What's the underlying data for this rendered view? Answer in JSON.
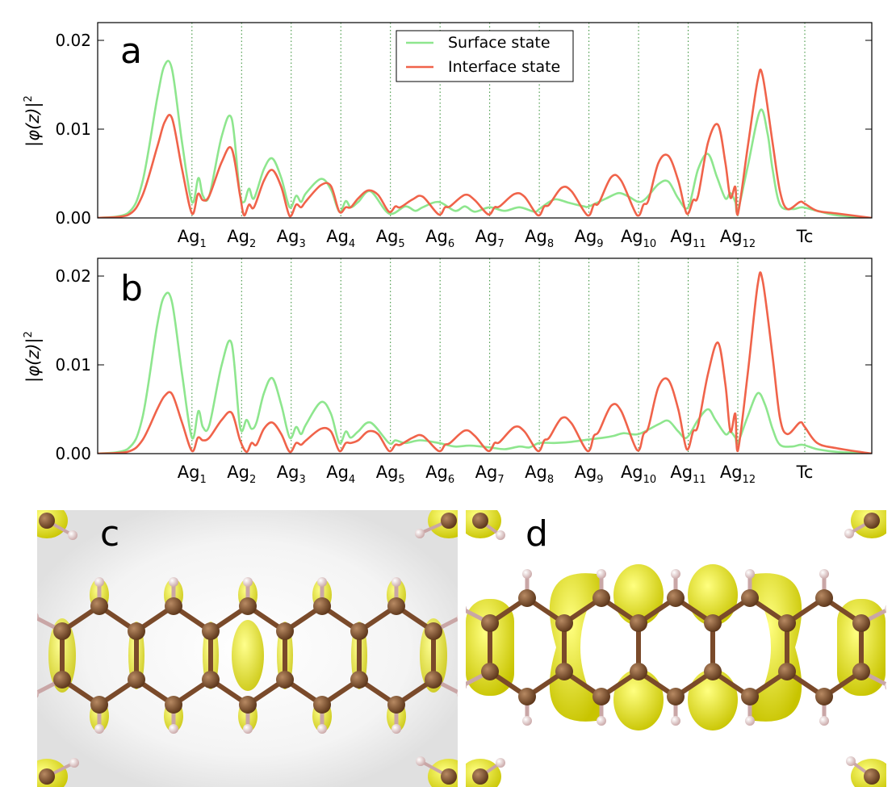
{
  "chart_data": [
    {
      "type": "line",
      "panel_label": "a",
      "ylabel": "|φ(z)|",
      "ylabel_sup": "2",
      "ylim": [
        0.0,
        0.022
      ],
      "yticks": [
        "0.00",
        "0.01",
        "0.02"
      ],
      "ytick_values": [
        0.0,
        0.01,
        0.02
      ],
      "xlim": [
        -1.9,
        13.7
      ],
      "legend_position": "top-center",
      "categories": [
        {
          "base": "Ag",
          "sub": "1",
          "x": 0
        },
        {
          "base": "Ag",
          "sub": "2",
          "x": 1
        },
        {
          "base": "Ag",
          "sub": "3",
          "x": 2
        },
        {
          "base": "Ag",
          "sub": "4",
          "x": 3
        },
        {
          "base": "Ag",
          "sub": "5",
          "x": 4
        },
        {
          "base": "Ag",
          "sub": "6",
          "x": 5
        },
        {
          "base": "Ag",
          "sub": "7",
          "x": 6
        },
        {
          "base": "Ag",
          "sub": "8",
          "x": 7
        },
        {
          "base": "Ag",
          "sub": "9",
          "x": 8
        },
        {
          "base": "Ag",
          "sub": "10",
          "x": 9
        },
        {
          "base": "Ag",
          "sub": "11",
          "x": 10
        },
        {
          "base": "Ag",
          "sub": "12",
          "x": 11
        },
        {
          "base": "Tc",
          "sub": "",
          "x": 12.35
        }
      ],
      "series": [
        {
          "name": "Surface state",
          "color": "#8ee68e",
          "x": [
            -1.9,
            -1.3,
            -1.0,
            -0.7,
            -0.55,
            -0.4,
            -0.2,
            0.0,
            0.13,
            0.22,
            0.35,
            0.6,
            0.8,
            0.96,
            1.05,
            1.15,
            1.25,
            1.45,
            1.62,
            1.8,
            1.97,
            2.1,
            2.2,
            2.3,
            2.6,
            2.8,
            2.97,
            3.1,
            3.2,
            3.35,
            3.6,
            3.97,
            4.3,
            4.5,
            4.65,
            4.97,
            5.3,
            5.5,
            5.7,
            6.0,
            6.3,
            6.6,
            6.9,
            7.0,
            7.2,
            7.35,
            7.6,
            7.9,
            8.0,
            8.35,
            8.6,
            8.8,
            9.0,
            9.15,
            9.4,
            9.6,
            9.8,
            10.0,
            10.2,
            10.4,
            10.58,
            10.75,
            10.85,
            10.95,
            11.0,
            11.2,
            11.45,
            11.6,
            11.7,
            11.85,
            12.1,
            12.3,
            12.6,
            13.0,
            13.7
          ],
          "values": [
            0.0,
            0.0005,
            0.004,
            0.0135,
            0.0172,
            0.0167,
            0.0085,
            0.0018,
            0.0045,
            0.0025,
            0.0025,
            0.0092,
            0.0112,
            0.003,
            0.0018,
            0.0033,
            0.0022,
            0.0055,
            0.0067,
            0.0045,
            0.0012,
            0.0025,
            0.0018,
            0.0028,
            0.0044,
            0.0032,
            0.0007,
            0.0019,
            0.0012,
            0.0018,
            0.003,
            0.0005,
            0.0013,
            0.0008,
            0.0012,
            0.0018,
            0.0008,
            0.0013,
            0.0007,
            0.0012,
            0.0008,
            0.0012,
            0.0007,
            0.001,
            0.0018,
            0.0021,
            0.0017,
            0.0013,
            0.0013,
            0.0022,
            0.0028,
            0.0024,
            0.0018,
            0.0022,
            0.0038,
            0.0041,
            0.0022,
            0.0012,
            0.0055,
            0.0072,
            0.0046,
            0.0022,
            0.0028,
            0.0018,
            0.0008,
            0.0058,
            0.0121,
            0.0095,
            0.0055,
            0.0015,
            0.001,
            0.0012,
            0.0008,
            0.0003,
            0.0
          ]
        },
        {
          "name": "Interface state",
          "color": "#f0634a",
          "x": [
            -1.9,
            -1.3,
            -1.0,
            -0.7,
            -0.55,
            -0.4,
            -0.2,
            0.0,
            0.12,
            0.22,
            0.35,
            0.6,
            0.8,
            0.97,
            1.05,
            1.15,
            1.25,
            1.45,
            1.62,
            1.8,
            1.97,
            2.1,
            2.2,
            2.3,
            2.6,
            2.8,
            2.97,
            3.1,
            3.2,
            3.35,
            3.55,
            3.75,
            3.97,
            4.1,
            4.2,
            4.45,
            4.65,
            4.97,
            5.1,
            5.2,
            5.5,
            5.7,
            5.97,
            6.1,
            6.2,
            6.5,
            6.7,
            6.97,
            7.1,
            7.2,
            7.45,
            7.65,
            7.97,
            8.1,
            8.2,
            8.45,
            8.65,
            8.97,
            9.1,
            9.2,
            9.4,
            9.6,
            9.8,
            9.97,
            10.1,
            10.2,
            10.4,
            10.6,
            10.75,
            10.85,
            10.95,
            11.0,
            11.2,
            11.4,
            11.5,
            11.7,
            11.85,
            12.0,
            12.25,
            12.35,
            12.6,
            13.0,
            13.7
          ],
          "values": [
            0.0,
            0.0003,
            0.0025,
            0.008,
            0.0108,
            0.0112,
            0.0055,
            0.0005,
            0.0027,
            0.002,
            0.0025,
            0.0063,
            0.0078,
            0.0025,
            0.0003,
            0.0015,
            0.0012,
            0.0042,
            0.0054,
            0.0035,
            0.0002,
            0.0015,
            0.0012,
            0.0019,
            0.0037,
            0.0036,
            0.0007,
            0.0012,
            0.0012,
            0.0022,
            0.0031,
            0.0026,
            0.0007,
            0.0013,
            0.0012,
            0.0021,
            0.0024,
            0.0004,
            0.0012,
            0.0013,
            0.0026,
            0.002,
            0.0004,
            0.0012,
            0.0013,
            0.0027,
            0.0024,
            0.0003,
            0.0013,
            0.0015,
            0.0034,
            0.003,
            0.0003,
            0.0015,
            0.0017,
            0.0046,
            0.0042,
            0.0003,
            0.0015,
            0.002,
            0.0062,
            0.007,
            0.0042,
            0.0005,
            0.002,
            0.0025,
            0.0085,
            0.0105,
            0.0062,
            0.0023,
            0.0035,
            0.0004,
            0.008,
            0.0155,
            0.016,
            0.0085,
            0.003,
            0.001,
            0.0018,
            0.0016,
            0.0008,
            0.0005,
            0.0
          ]
        }
      ]
    },
    {
      "type": "line",
      "panel_label": "b",
      "ylabel": "|φ(z)|",
      "ylabel_sup": "2",
      "ylim": [
        0.0,
        0.022
      ],
      "yticks": [
        "0.00",
        "0.01",
        "0.02"
      ],
      "ytick_values": [
        0.0,
        0.01,
        0.02
      ],
      "xlim": [
        -1.9,
        13.7
      ],
      "categories": [
        {
          "base": "Ag",
          "sub": "1",
          "x": 0
        },
        {
          "base": "Ag",
          "sub": "2",
          "x": 1
        },
        {
          "base": "Ag",
          "sub": "3",
          "x": 2
        },
        {
          "base": "Ag",
          "sub": "4",
          "x": 3
        },
        {
          "base": "Ag",
          "sub": "5",
          "x": 4
        },
        {
          "base": "Ag",
          "sub": "6",
          "x": 5
        },
        {
          "base": "Ag",
          "sub": "7",
          "x": 6
        },
        {
          "base": "Ag",
          "sub": "8",
          "x": 7
        },
        {
          "base": "Ag",
          "sub": "9",
          "x": 8
        },
        {
          "base": "Ag",
          "sub": "10",
          "x": 9
        },
        {
          "base": "Ag",
          "sub": "11",
          "x": 10
        },
        {
          "base": "Ag",
          "sub": "12",
          "x": 11
        },
        {
          "base": "Tc",
          "sub": "",
          "x": 12.35
        }
      ],
      "series": [
        {
          "name": "Surface state",
          "color": "#8ee68e",
          "x": [
            -1.9,
            -1.3,
            -1.0,
            -0.7,
            -0.55,
            -0.4,
            -0.2,
            0.0,
            0.13,
            0.22,
            0.35,
            0.6,
            0.8,
            0.97,
            1.1,
            1.2,
            1.3,
            1.45,
            1.62,
            1.8,
            1.97,
            2.1,
            2.2,
            2.3,
            2.6,
            2.8,
            2.97,
            3.1,
            3.2,
            3.35,
            3.6,
            3.97,
            4.1,
            4.3,
            4.6,
            4.97,
            5.3,
            5.6,
            6.0,
            6.3,
            6.6,
            6.8,
            7.0,
            7.3,
            7.6,
            8.0,
            8.3,
            8.5,
            8.7,
            9.0,
            9.4,
            9.6,
            9.8,
            9.97,
            10.2,
            10.4,
            10.55,
            10.75,
            10.85,
            10.95,
            11.0,
            11.2,
            11.4,
            11.55,
            11.7,
            11.85,
            12.1,
            12.3,
            12.6,
            13.0,
            13.7
          ],
          "values": [
            0.0,
            0.0005,
            0.004,
            0.0145,
            0.0178,
            0.017,
            0.009,
            0.0018,
            0.0048,
            0.003,
            0.0032,
            0.01,
            0.0124,
            0.003,
            0.0038,
            0.0028,
            0.0035,
            0.0068,
            0.0085,
            0.0055,
            0.0018,
            0.003,
            0.0022,
            0.0033,
            0.0058,
            0.0045,
            0.0012,
            0.0025,
            0.0018,
            0.0025,
            0.0035,
            0.0012,
            0.0015,
            0.0012,
            0.0015,
            0.0012,
            0.0008,
            0.0009,
            0.0007,
            0.0005,
            0.0008,
            0.0007,
            0.0012,
            0.0012,
            0.0013,
            0.0016,
            0.0018,
            0.002,
            0.0023,
            0.0022,
            0.0033,
            0.0037,
            0.0025,
            0.0018,
            0.0038,
            0.005,
            0.0038,
            0.0022,
            0.0025,
            0.0018,
            0.0012,
            0.0042,
            0.0068,
            0.0055,
            0.0028,
            0.001,
            0.0008,
            0.001,
            0.0005,
            0.0002,
            0.0
          ]
        },
        {
          "name": "Interface state",
          "color": "#f0634a",
          "x": [
            -1.9,
            -1.3,
            -1.0,
            -0.7,
            -0.55,
            -0.4,
            -0.2,
            0.0,
            0.12,
            0.22,
            0.35,
            0.6,
            0.8,
            0.97,
            1.1,
            1.2,
            1.3,
            1.45,
            1.62,
            1.8,
            1.97,
            2.1,
            2.2,
            2.3,
            2.6,
            2.8,
            2.97,
            3.1,
            3.2,
            3.35,
            3.55,
            3.75,
            3.97,
            4.1,
            4.2,
            4.45,
            4.65,
            4.97,
            5.1,
            5.2,
            5.5,
            5.7,
            5.97,
            6.1,
            6.2,
            6.5,
            6.7,
            6.97,
            7.1,
            7.2,
            7.45,
            7.65,
            7.97,
            8.1,
            8.2,
            8.45,
            8.65,
            8.97,
            9.1,
            9.2,
            9.4,
            9.6,
            9.8,
            9.97,
            10.1,
            10.2,
            10.4,
            10.6,
            10.75,
            10.85,
            10.95,
            11.0,
            11.2,
            11.4,
            11.5,
            11.7,
            11.85,
            12.0,
            12.25,
            12.35,
            12.6,
            13.0,
            13.7
          ],
          "values": [
            0.0,
            0.0002,
            0.0015,
            0.005,
            0.0065,
            0.0067,
            0.0035,
            0.0003,
            0.0018,
            0.0015,
            0.0018,
            0.0038,
            0.0046,
            0.0015,
            0.0002,
            0.0012,
            0.001,
            0.0028,
            0.0035,
            0.0022,
            0.0002,
            0.0012,
            0.001,
            0.0015,
            0.0028,
            0.0025,
            0.0003,
            0.0012,
            0.0012,
            0.0015,
            0.0025,
            0.0022,
            0.0003,
            0.001,
            0.001,
            0.0018,
            0.002,
            0.0003,
            0.001,
            0.0012,
            0.0026,
            0.002,
            0.0003,
            0.0012,
            0.0013,
            0.003,
            0.0025,
            0.0003,
            0.0015,
            0.0018,
            0.004,
            0.0034,
            0.0003,
            0.002,
            0.0025,
            0.0054,
            0.0048,
            0.0004,
            0.0022,
            0.003,
            0.0075,
            0.0083,
            0.005,
            0.0005,
            0.0025,
            0.0032,
            0.009,
            0.0125,
            0.0078,
            0.0025,
            0.0045,
            0.0003,
            0.009,
            0.019,
            0.0195,
            0.011,
            0.004,
            0.0022,
            0.0035,
            0.003,
            0.0012,
            0.0006,
            0.0
          ]
        }
      ]
    }
  ],
  "panels": [
    {
      "id": "c",
      "label": "c",
      "colors": {
        "carbon": "#7a4a2a",
        "hydrogen": "#e8cccc",
        "isosurface": "#e8e81a"
      }
    },
    {
      "id": "d",
      "label": "d",
      "colors": {
        "carbon": "#7a4a2a",
        "hydrogen": "#e8cccc",
        "isosurface": "#e8e81a"
      }
    }
  ],
  "colors": {
    "gridline": "#2e8b2e",
    "axes": "#000000"
  }
}
